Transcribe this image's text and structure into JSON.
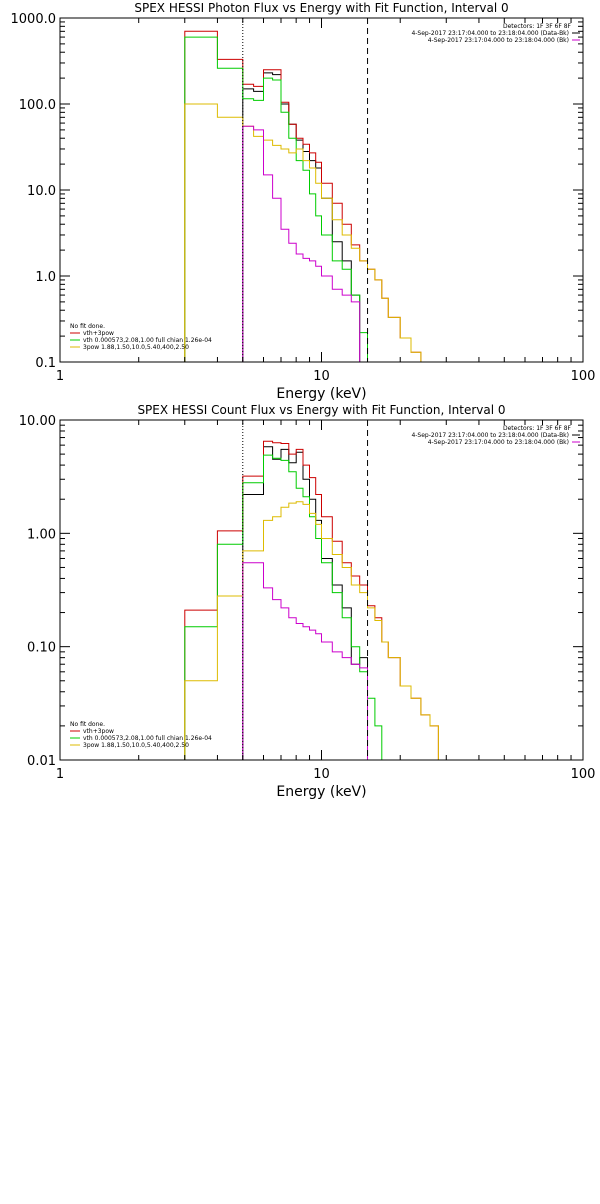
{
  "chart_data": [
    {
      "type": "line",
      "title": "SPEX HESSI Photon Flux vs Energy with Fit Function, Interval 0",
      "xlabel": "Energy (keV)",
      "ylabel": "",
      "xscale": "log",
      "yscale": "log",
      "xlim": [
        1,
        100
      ],
      "ylim": [
        0.1,
        1000
      ],
      "x_ticks": [
        1,
        10,
        100
      ],
      "x_tick_labels": [
        "1",
        "10",
        "100"
      ],
      "y_ticks": [
        0.1,
        1,
        10,
        100,
        1000
      ],
      "y_tick_labels": [
        "0.1",
        "1.0",
        "10.0",
        "100.0",
        "1000.0"
      ],
      "grid": false,
      "vlines": [
        {
          "x": 5.0,
          "style": "dotted"
        },
        {
          "x": 15.0,
          "style": "dashed"
        }
      ],
      "legend_top": {
        "placement": "top-right",
        "header": "Detectors: 1F 3F 6F 8F",
        "entries": [
          {
            "text": "4-Sep-2017 23:17:04.000 to 23:18:04.000 (Data-Bk)",
            "color": "#000000"
          },
          {
            "text": "4-Sep-2017 23:17:04.000 to 23:18:04.000 (Bk)",
            "color": "#cc00cc"
          }
        ]
      },
      "legend_bottom": {
        "placement": "bottom-left",
        "header": "No fit done.",
        "entries": [
          {
            "text": "vth+3pow",
            "color": "#cc0000"
          },
          {
            "text": "vth 0.000573,2.08,1.00   full chian 1.26e-04",
            "color": "#00cc00"
          },
          {
            "text": "3pow 1.88,1.50,10.0,5.40,400,2.50",
            "color": "#ddbb00"
          }
        ]
      },
      "series": [
        {
          "color": "#000000",
          "edges": [
            5,
            5.5,
            6,
            6.5,
            7,
            7.5,
            8,
            8.5,
            9,
            9.5,
            10,
            11,
            12,
            13,
            14,
            15
          ],
          "values": [
            150,
            140,
            230,
            220,
            100,
            58,
            38,
            28,
            22,
            18,
            8,
            2.5,
            1.5,
            0.6,
            0.1
          ]
        },
        {
          "color": "#cc0000",
          "edges": [
            3,
            4,
            5,
            5.5,
            6,
            6.5,
            7,
            7.5,
            8,
            8.5,
            9,
            9.5,
            10,
            11,
            12,
            13,
            14,
            15,
            16,
            17,
            18,
            20,
            22,
            24,
            26,
            28
          ],
          "values": [
            700,
            330,
            170,
            160,
            250,
            250,
            105,
            58,
            40,
            34,
            27,
            21,
            12,
            7,
            4,
            2.3,
            1.5,
            1.2,
            0.9,
            0.55,
            0.33,
            0.19,
            0.13,
            0.1,
            0.1
          ]
        },
        {
          "color": "#00cc00",
          "edges": [
            3,
            4,
            5,
            5.5,
            6,
            6.5,
            7,
            7.5,
            8,
            8.5,
            9,
            9.5,
            10,
            11,
            12,
            13,
            14,
            15
          ],
          "values": [
            600,
            260,
            115,
            110,
            200,
            190,
            80,
            40,
            22,
            17,
            9,
            5,
            3,
            1.5,
            1.2,
            0.6,
            0.22
          ]
        },
        {
          "color": "#ddbb00",
          "edges": [
            3,
            4,
            5,
            5.5,
            6,
            6.5,
            7,
            7.5,
            8,
            8.5,
            9,
            9.5,
            10,
            11,
            12,
            13,
            14,
            15,
            16,
            17,
            18,
            20,
            22,
            24,
            26,
            28
          ],
          "values": [
            100,
            70,
            55,
            42,
            38,
            33,
            30,
            27,
            30,
            22,
            18,
            12,
            8,
            4.5,
            3,
            2.1,
            1.5,
            1.2,
            0.9,
            0.55,
            0.33,
            0.19,
            0.13,
            0.1,
            0.1
          ]
        },
        {
          "color": "#cc00cc",
          "edges": [
            5,
            5.5,
            6,
            6.5,
            7,
            7.5,
            8,
            8.5,
            9,
            9.5,
            10,
            11,
            12,
            13,
            14,
            15
          ],
          "values": [
            55,
            50,
            15,
            8,
            3.5,
            2.4,
            1.8,
            1.6,
            1.5,
            1.3,
            1.0,
            0.7,
            0.6,
            0.5,
            0.1
          ]
        }
      ]
    },
    {
      "type": "line",
      "title": "SPEX HESSI Count Flux vs Energy with Fit Function, Interval 0",
      "xlabel": "Energy (keV)",
      "ylabel": "",
      "xscale": "log",
      "yscale": "log",
      "xlim": [
        1,
        100
      ],
      "ylim": [
        0.01,
        10
      ],
      "x_ticks": [
        1,
        10,
        100
      ],
      "x_tick_labels": [
        "1",
        "10",
        "100"
      ],
      "y_ticks": [
        0.01,
        0.1,
        1,
        10
      ],
      "y_tick_labels": [
        "0.01",
        "0.10",
        "1.00",
        "10.00"
      ],
      "grid": false,
      "vlines": [
        {
          "x": 5.0,
          "style": "dotted"
        },
        {
          "x": 15.0,
          "style": "dashed"
        }
      ],
      "legend_top": {
        "placement": "top-right",
        "header": "Detectors: 1F 3F 6F 8F",
        "entries": [
          {
            "text": "4-Sep-2017 23:17:04.000 to 23:18:04.000 (Data-Bk)",
            "color": "#000000"
          },
          {
            "text": "4-Sep-2017 23:17:04.000 to 23:18:04.000 (Bk)",
            "color": "#cc00cc"
          }
        ]
      },
      "legend_bottom": {
        "placement": "bottom-left",
        "header": "No fit done.",
        "entries": [
          {
            "text": "vth+3pow",
            "color": "#cc0000"
          },
          {
            "text": "vth 0.000573,2.08,1.00   full chian 1.26e-04",
            "color": "#00cc00"
          },
          {
            "text": "3pow 1.88,1.50,10.0,5.40,400,2.50",
            "color": "#ddbb00"
          }
        ]
      },
      "series": [
        {
          "color": "#000000",
          "edges": [
            5,
            6,
            6.5,
            7,
            7.5,
            8,
            8.5,
            9,
            9.5,
            10,
            11,
            12,
            13,
            14,
            15
          ],
          "values": [
            2.2,
            5.8,
            4.5,
            5.5,
            4.2,
            5.2,
            3.0,
            2.0,
            1.3,
            0.6,
            0.35,
            0.22,
            0.07,
            0.08
          ]
        },
        {
          "color": "#cc0000",
          "edges": [
            3,
            4,
            5,
            6,
            6.5,
            7,
            7.5,
            8,
            8.5,
            9,
            9.5,
            10,
            11,
            12,
            13,
            14,
            15,
            16,
            17,
            18,
            20,
            22,
            24,
            26,
            28
          ],
          "values": [
            0.21,
            1.05,
            3.2,
            6.5,
            6.3,
            6.2,
            5.0,
            5.5,
            4.0,
            3.1,
            2.2,
            1.4,
            0.85,
            0.55,
            0.42,
            0.35,
            0.23,
            0.18,
            0.11,
            0.08,
            0.045,
            0.035,
            0.025,
            0.02
          ]
        },
        {
          "color": "#00cc00",
          "edges": [
            3,
            4,
            5,
            6,
            6.5,
            7,
            7.5,
            8,
            8.5,
            9,
            9.5,
            10,
            11,
            12,
            13,
            14,
            15,
            16,
            17,
            18
          ],
          "values": [
            0.15,
            0.8,
            2.8,
            4.9,
            4.6,
            4.4,
            3.5,
            2.5,
            2.1,
            1.4,
            0.9,
            0.55,
            0.3,
            0.18,
            0.1,
            0.06,
            0.035,
            0.02,
            0.01
          ]
        },
        {
          "color": "#ddbb00",
          "edges": [
            3,
            4,
            5,
            6,
            6.5,
            7,
            7.5,
            8,
            8.5,
            9,
            9.5,
            10,
            11,
            12,
            13,
            14,
            15,
            16,
            17,
            18,
            20,
            22,
            24,
            26,
            28
          ],
          "values": [
            0.05,
            0.28,
            0.7,
            1.3,
            1.4,
            1.7,
            1.85,
            1.9,
            1.8,
            1.5,
            1.2,
            0.9,
            0.65,
            0.5,
            0.35,
            0.3,
            0.22,
            0.17,
            0.11,
            0.08,
            0.045,
            0.035,
            0.025,
            0.02
          ]
        },
        {
          "color": "#cc00cc",
          "edges": [
            5,
            6,
            6.5,
            7,
            7.5,
            8,
            8.5,
            9,
            9.5,
            10,
            11,
            12,
            13,
            14,
            15
          ],
          "values": [
            0.55,
            0.33,
            0.26,
            0.22,
            0.18,
            0.16,
            0.15,
            0.14,
            0.13,
            0.11,
            0.09,
            0.08,
            0.07,
            0.065
          ]
        }
      ]
    }
  ]
}
